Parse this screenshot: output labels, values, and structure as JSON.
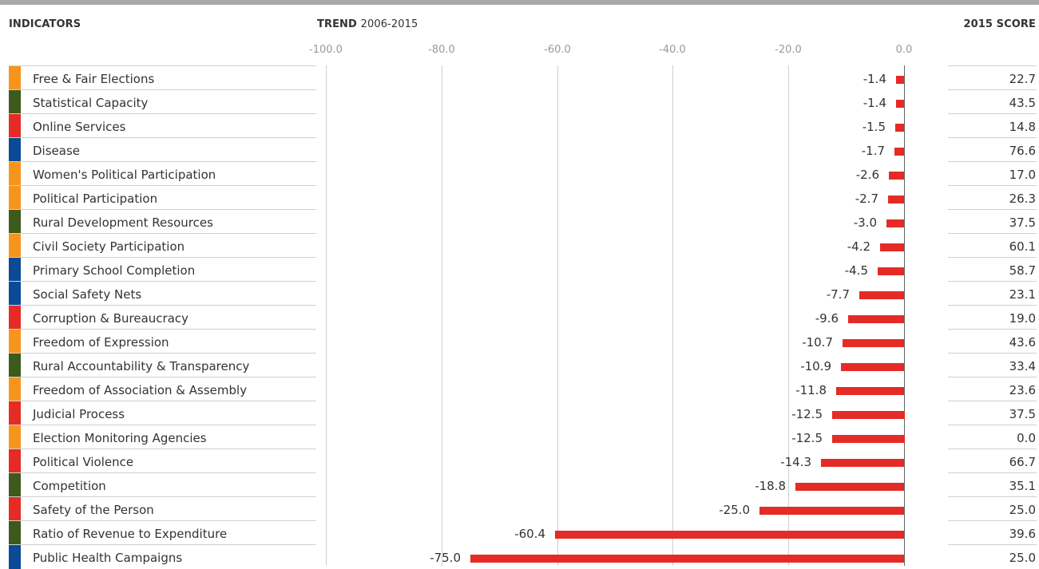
{
  "headers": {
    "indicators": "INDICATORS",
    "trend_bold": "TREND",
    "trend_period": "2006-2015",
    "score": "2015 SCORE"
  },
  "colors": {
    "bar": "#e42b25",
    "orange": "#f7941d",
    "green": "#3b5a1c",
    "red": "#e42b25",
    "blue": "#0a4a97"
  },
  "chart_data": {
    "type": "bar",
    "orientation": "horizontal",
    "xlim": [
      -100,
      0
    ],
    "ticks": [
      "-100.0",
      "-80.0",
      "-60.0",
      "-40.0",
      "-20.0",
      "0.0"
    ],
    "tick_values": [
      -100,
      -80,
      -60,
      -40,
      -20,
      0
    ],
    "grid": true,
    "categories": [
      "Free & Fair Elections",
      "Statistical Capacity",
      "Online Services",
      "Disease",
      "Women's Political Participation",
      "Political Participation",
      "Rural Development Resources",
      "Civil Society Participation",
      "Primary School Completion",
      "Social Safety Nets",
      "Corruption & Bureaucracy",
      "Freedom of Expression",
      "Rural Accountability & Transparency",
      "Freedom of Association & Assembly",
      "Judicial Process",
      "Election Monitoring Agencies",
      "Political Violence",
      "Competition",
      "Safety of the Person",
      "Ratio of Revenue to Expenditure",
      "Public Health Campaigns"
    ],
    "values": [
      -1.4,
      -1.4,
      -1.5,
      -1.7,
      -2.6,
      -2.7,
      -3.0,
      -4.2,
      -4.5,
      -7.7,
      -9.6,
      -10.7,
      -10.9,
      -11.8,
      -12.5,
      -12.5,
      -14.3,
      -18.8,
      -25.0,
      -60.4,
      -75.0
    ],
    "value_labels": [
      "-1.4",
      "-1.4",
      "-1.5",
      "-1.7",
      "-2.6",
      "-2.7",
      "-3.0",
      "-4.2",
      "-4.5",
      "-7.7",
      "-9.6",
      "-10.7",
      "-10.9",
      "-11.8",
      "-12.5",
      "-12.5",
      "-14.3",
      "-18.8",
      "-25.0",
      "-60.4",
      "-75.0"
    ],
    "scores": [
      "22.7",
      "43.5",
      "14.8",
      "76.6",
      "17.0",
      "26.3",
      "37.5",
      "60.1",
      "58.7",
      "23.1",
      "19.0",
      "43.6",
      "33.4",
      "23.6",
      "37.5",
      "0.0",
      "66.7",
      "35.1",
      "25.0",
      "39.6",
      "25.0"
    ],
    "category_groups": [
      "orange",
      "green",
      "red",
      "blue",
      "orange",
      "orange",
      "green",
      "orange",
      "blue",
      "blue",
      "red",
      "orange",
      "green",
      "orange",
      "red",
      "orange",
      "red",
      "green",
      "red",
      "green",
      "blue"
    ]
  }
}
